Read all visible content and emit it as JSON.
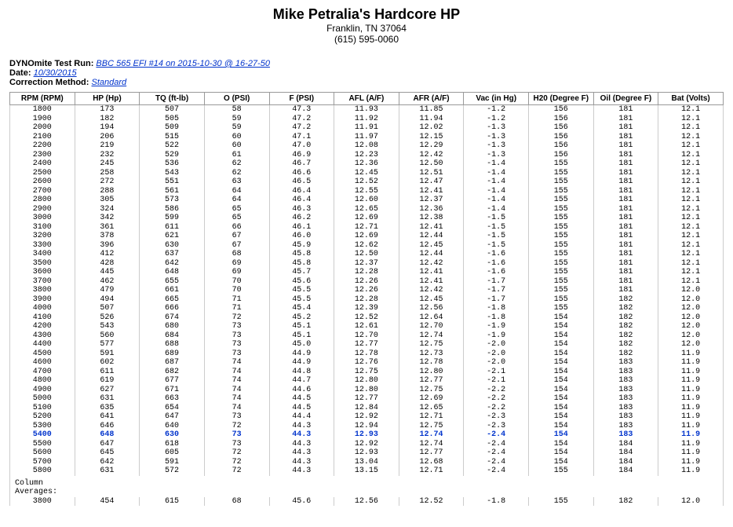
{
  "header": {
    "title": "Mike Petralia's Hardcore HP",
    "addr": "Franklin, TN 37064",
    "phone": "(615) 595-0060"
  },
  "meta": {
    "run_label": "DYNOmite Test Run:",
    "run_link": "BBC 565 EFI #14 on 2015-10-30 @ 16-27-50",
    "date_label": "Date:",
    "date_link": "10/30/2015",
    "corr_label": "Correction Method:",
    "corr_link": "Standard"
  },
  "table": {
    "columns": [
      "RPM (RPM)",
      "HP (Hp)",
      "TQ (ft-lb)",
      "O (PSI)",
      "F (PSI)",
      "AFL (A/F)",
      "AFR (A/F)",
      "Vac (in Hg)",
      "H20 (Degree F)",
      "Oil (Degree F)",
      "Bat (Volts)"
    ],
    "rows": [
      [
        "1800",
        "173",
        "507",
        "58",
        "47.3",
        "11.93",
        "11.85",
        "-1.2",
        "156",
        "181",
        "12.1"
      ],
      [
        "1900",
        "182",
        "505",
        "59",
        "47.2",
        "11.92",
        "11.94",
        "-1.2",
        "156",
        "181",
        "12.1"
      ],
      [
        "2000",
        "194",
        "509",
        "59",
        "47.2",
        "11.91",
        "12.02",
        "-1.3",
        "156",
        "181",
        "12.1"
      ],
      [
        "2100",
        "206",
        "515",
        "60",
        "47.1",
        "11.97",
        "12.15",
        "-1.3",
        "156",
        "181",
        "12.1"
      ],
      [
        "2200",
        "219",
        "522",
        "60",
        "47.0",
        "12.08",
        "12.29",
        "-1.3",
        "156",
        "181",
        "12.1"
      ],
      [
        "2300",
        "232",
        "529",
        "61",
        "46.9",
        "12.23",
        "12.42",
        "-1.3",
        "156",
        "181",
        "12.1"
      ],
      [
        "2400",
        "245",
        "536",
        "62",
        "46.7",
        "12.36",
        "12.50",
        "-1.4",
        "155",
        "181",
        "12.1"
      ],
      [
        "2500",
        "258",
        "543",
        "62",
        "46.6",
        "12.45",
        "12.51",
        "-1.4",
        "155",
        "181",
        "12.1"
      ],
      [
        "2600",
        "272",
        "551",
        "63",
        "46.5",
        "12.52",
        "12.47",
        "-1.4",
        "155",
        "181",
        "12.1"
      ],
      [
        "2700",
        "288",
        "561",
        "64",
        "46.4",
        "12.55",
        "12.41",
        "-1.4",
        "155",
        "181",
        "12.1"
      ],
      [
        "2800",
        "305",
        "573",
        "64",
        "46.4",
        "12.60",
        "12.37",
        "-1.4",
        "155",
        "181",
        "12.1"
      ],
      [
        "2900",
        "324",
        "586",
        "65",
        "46.3",
        "12.65",
        "12.36",
        "-1.4",
        "155",
        "181",
        "12.1"
      ],
      [
        "3000",
        "342",
        "599",
        "65",
        "46.2",
        "12.69",
        "12.38",
        "-1.5",
        "155",
        "181",
        "12.1"
      ],
      [
        "3100",
        "361",
        "611",
        "66",
        "46.1",
        "12.71",
        "12.41",
        "-1.5",
        "155",
        "181",
        "12.1"
      ],
      [
        "3200",
        "378",
        "621",
        "67",
        "46.0",
        "12.69",
        "12.44",
        "-1.5",
        "155",
        "181",
        "12.1"
      ],
      [
        "3300",
        "396",
        "630",
        "67",
        "45.9",
        "12.62",
        "12.45",
        "-1.5",
        "155",
        "181",
        "12.1"
      ],
      [
        "3400",
        "412",
        "637",
        "68",
        "45.8",
        "12.50",
        "12.44",
        "-1.6",
        "155",
        "181",
        "12.1"
      ],
      [
        "3500",
        "428",
        "642",
        "69",
        "45.8",
        "12.37",
        "12.42",
        "-1.6",
        "155",
        "181",
        "12.1"
      ],
      [
        "3600",
        "445",
        "648",
        "69",
        "45.7",
        "12.28",
        "12.41",
        "-1.6",
        "155",
        "181",
        "12.1"
      ],
      [
        "3700",
        "462",
        "655",
        "70",
        "45.6",
        "12.26",
        "12.41",
        "-1.7",
        "155",
        "181",
        "12.1"
      ],
      [
        "3800",
        "479",
        "661",
        "70",
        "45.5",
        "12.26",
        "12.42",
        "-1.7",
        "155",
        "181",
        "12.0"
      ],
      [
        "3900",
        "494",
        "665",
        "71",
        "45.5",
        "12.28",
        "12.45",
        "-1.7",
        "155",
        "182",
        "12.0"
      ],
      [
        "4000",
        "507",
        "666",
        "71",
        "45.4",
        "12.39",
        "12.56",
        "-1.8",
        "155",
        "182",
        "12.0"
      ],
      [
        "4100",
        "526",
        "674",
        "72",
        "45.2",
        "12.52",
        "12.64",
        "-1.8",
        "154",
        "182",
        "12.0"
      ],
      [
        "4200",
        "543",
        "680",
        "73",
        "45.1",
        "12.61",
        "12.70",
        "-1.9",
        "154",
        "182",
        "12.0"
      ],
      [
        "4300",
        "560",
        "684",
        "73",
        "45.1",
        "12.70",
        "12.74",
        "-1.9",
        "154",
        "182",
        "12.0"
      ],
      [
        "4400",
        "577",
        "688",
        "73",
        "45.0",
        "12.77",
        "12.75",
        "-2.0",
        "154",
        "182",
        "12.0"
      ],
      [
        "4500",
        "591",
        "689",
        "73",
        "44.9",
        "12.78",
        "12.73",
        "-2.0",
        "154",
        "182",
        "11.9"
      ],
      [
        "4600",
        "602",
        "687",
        "74",
        "44.9",
        "12.76",
        "12.78",
        "-2.0",
        "154",
        "183",
        "11.9"
      ],
      [
        "4700",
        "611",
        "682",
        "74",
        "44.8",
        "12.75",
        "12.80",
        "-2.1",
        "154",
        "183",
        "11.9"
      ],
      [
        "4800",
        "619",
        "677",
        "74",
        "44.7",
        "12.80",
        "12.77",
        "-2.1",
        "154",
        "183",
        "11.9"
      ],
      [
        "4900",
        "627",
        "671",
        "74",
        "44.6",
        "12.80",
        "12.75",
        "-2.2",
        "154",
        "183",
        "11.9"
      ],
      [
        "5000",
        "631",
        "663",
        "74",
        "44.5",
        "12.77",
        "12.69",
        "-2.2",
        "154",
        "183",
        "11.9"
      ],
      [
        "5100",
        "635",
        "654",
        "74",
        "44.5",
        "12.84",
        "12.65",
        "-2.2",
        "154",
        "183",
        "11.9"
      ],
      [
        "5200",
        "641",
        "647",
        "73",
        "44.4",
        "12.92",
        "12.71",
        "-2.3",
        "154",
        "183",
        "11.9"
      ],
      [
        "5300",
        "646",
        "640",
        "72",
        "44.3",
        "12.94",
        "12.75",
        "-2.3",
        "154",
        "183",
        "11.9"
      ],
      [
        "5400",
        "648",
        "630",
        "73",
        "44.3",
        "12.93",
        "12.74",
        "-2.4",
        "154",
        "183",
        "11.9"
      ],
      [
        "5500",
        "647",
        "618",
        "73",
        "44.3",
        "12.92",
        "12.74",
        "-2.4",
        "154",
        "184",
        "11.9"
      ],
      [
        "5600",
        "645",
        "605",
        "72",
        "44.3",
        "12.93",
        "12.77",
        "-2.4",
        "154",
        "184",
        "11.9"
      ],
      [
        "5700",
        "642",
        "591",
        "72",
        "44.3",
        "13.04",
        "12.68",
        "-2.4",
        "154",
        "184",
        "11.9"
      ],
      [
        "5800",
        "631",
        "572",
        "72",
        "44.3",
        "13.15",
        "12.71",
        "-2.4",
        "155",
        "184",
        "11.9"
      ]
    ],
    "highlight_index": 36,
    "avg_label1": "Column",
    "avg_label2": "Averages:",
    "avg_row": [
      "3800",
      "454",
      "615",
      "68",
      "45.6",
      "12.56",
      "12.52",
      "-1.8",
      "155",
      "182",
      "12.0"
    ]
  },
  "style": {
    "link_color": "#0033cc",
    "highlight_color": "#0033cc",
    "border_color": "#999999",
    "bg": "#ffffff",
    "mono_font": "Courier New"
  }
}
